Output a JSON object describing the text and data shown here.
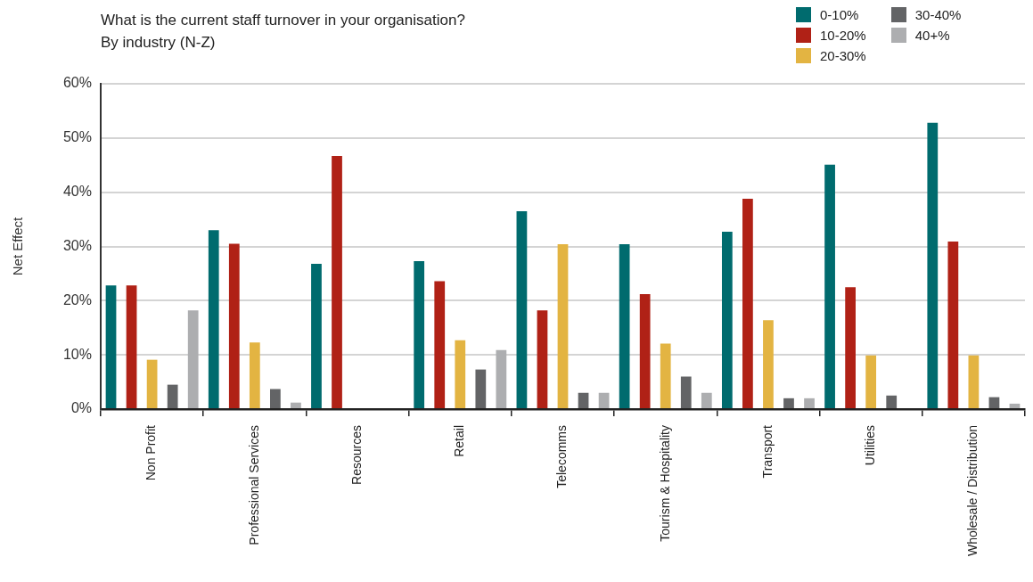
{
  "chart_data": {
    "type": "bar",
    "title": "What is the current staff turnover in your organisation?",
    "subtitle": "By industry (N-Z)",
    "ylabel": "Net Effect",
    "categories": [
      "Non Profit",
      "Professional Services",
      "Resources",
      "Retail",
      "Telecomms",
      "Tourism & Hospitality",
      "Transport",
      "Utilities",
      "Wholesale / Distribution"
    ],
    "series": [
      {
        "name": "0-10%",
        "color": "#006b6e",
        "values": [
          22.8,
          33.0,
          26.8,
          27.3,
          36.5,
          30.4,
          32.7,
          45.1,
          52.8
        ]
      },
      {
        "name": "10-20%",
        "color": "#b02116",
        "values": [
          22.8,
          30.5,
          46.7,
          23.6,
          18.2,
          21.2,
          38.8,
          22.5,
          30.9
        ]
      },
      {
        "name": "20-30%",
        "color": "#e3b442",
        "values": [
          9.1,
          12.3,
          0,
          12.7,
          30.4,
          12.1,
          16.4,
          9.9,
          9.9
        ]
      },
      {
        "name": "30-40%",
        "color": "#636466",
        "values": [
          4.5,
          3.7,
          0,
          7.3,
          3.0,
          6.0,
          2.0,
          2.5,
          2.2
        ]
      },
      {
        "name": "40+%",
        "color": "#adaeb0",
        "values": [
          18.2,
          1.2,
          0,
          10.9,
          3.0,
          3.0,
          2.0,
          0,
          1.0
        ]
      }
    ],
    "ylim": [
      0,
      60
    ],
    "yticks": [
      {
        "value": 0,
        "label": "0%"
      },
      {
        "value": 10,
        "label": "10%"
      },
      {
        "value": 20,
        "label": "20%"
      },
      {
        "value": 30,
        "label": "30%"
      },
      {
        "value": 40,
        "label": "40%"
      },
      {
        "value": 50,
        "label": "50%"
      },
      {
        "value": 60,
        "label": "60%"
      }
    ],
    "grid": "y",
    "legend": "top right"
  }
}
